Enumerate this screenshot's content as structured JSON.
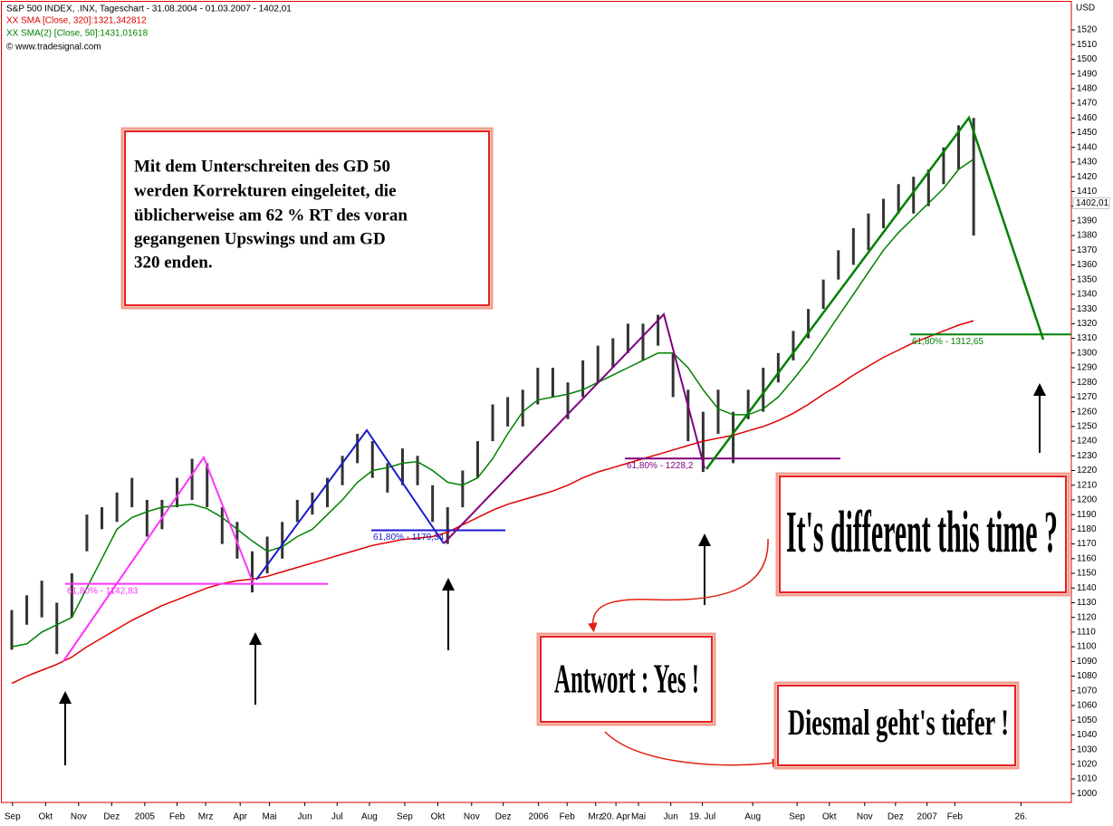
{
  "chart_data": {
    "type": "ohlc",
    "title": "S&P 500 INDEX, .INX, Tageschart - 31.08.2004 - 01.03.2007 - 1402,01",
    "credit": "© www.tradesignal.com",
    "y_axis_label": "USD",
    "color": "#333333",
    "x": [
      0,
      2,
      4,
      6,
      8,
      10,
      12,
      14,
      16,
      18,
      20,
      22,
      24,
      26,
      28,
      30,
      32,
      34,
      36,
      38,
      40,
      42,
      44,
      46,
      48,
      50,
      52,
      54,
      56,
      58,
      60,
      62,
      64,
      66,
      68,
      70,
      72,
      74,
      76,
      78,
      80,
      82,
      84,
      86,
      88,
      90,
      92,
      94,
      96,
      98,
      100,
      102,
      104,
      106,
      108,
      110,
      112,
      114,
      116,
      118,
      120,
      122,
      124,
      126,
      128
    ],
    "high": [
      1125,
      1135,
      1145,
      1130,
      1150,
      1190,
      1195,
      1205,
      1215,
      1200,
      1200,
      1215,
      1228,
      1225,
      1195,
      1185,
      1165,
      1175,
      1185,
      1200,
      1205,
      1215,
      1230,
      1245,
      1240,
      1225,
      1235,
      1230,
      1210,
      1195,
      1220,
      1240,
      1265,
      1270,
      1275,
      1290,
      1290,
      1280,
      1295,
      1305,
      1310,
      1320,
      1320,
      1326,
      1300,
      1275,
      1260,
      1275,
      1260,
      1275,
      1290,
      1300,
      1315,
      1330,
      1350,
      1370,
      1385,
      1395,
      1405,
      1415,
      1420,
      1425,
      1440,
      1455,
      1460
    ],
    "low": [
      1098,
      1115,
      1120,
      1095,
      1120,
      1165,
      1180,
      1185,
      1195,
      1175,
      1180,
      1195,
      1200,
      1195,
      1170,
      1160,
      1137,
      1150,
      1160,
      1185,
      1190,
      1195,
      1210,
      1225,
      1215,
      1205,
      1210,
      1210,
      1185,
      1170,
      1195,
      1215,
      1240,
      1250,
      1250,
      1265,
      1270,
      1255,
      1270,
      1280,
      1290,
      1300,
      1295,
      1305,
      1270,
      1240,
      1219,
      1245,
      1225,
      1255,
      1260,
      1280,
      1295,
      1310,
      1330,
      1350,
      1360,
      1370,
      1385,
      1395,
      1395,
      1400,
      1415,
      1425,
      1380
    ],
    "series": [
      {
        "name": "XX SMA [Close, 320]:1321,342812",
        "color": "#e00000",
        "values": [
          1075,
          1080,
          1084,
          1088,
          1093,
          1100,
          1106,
          1112,
          1118,
          1123,
          1128,
          1132,
          1136,
          1140,
          1143,
          1145,
          1146,
          1148,
          1151,
          1154,
          1157,
          1160,
          1163,
          1166,
          1169,
          1171,
          1173,
          1174,
          1175,
          1178,
          1183,
          1188,
          1193,
          1197,
          1200,
          1203,
          1206,
          1210,
          1215,
          1219,
          1222,
          1225,
          1228,
          1231,
          1234,
          1237,
          1240,
          1242,
          1244,
          1247,
          1250,
          1254,
          1259,
          1265,
          1272,
          1278,
          1285,
          1291,
          1297,
          1302,
          1307,
          1311,
          1315,
          1319,
          1322
        ]
      },
      {
        "name": "XX SMA(2) [Close, 50]:1431,01618",
        "color": "#008000",
        "values": [
          1100,
          1102,
          1110,
          1115,
          1120,
          1140,
          1160,
          1180,
          1188,
          1192,
          1195,
          1196,
          1197,
          1194,
          1188,
          1180,
          1172,
          1165,
          1168,
          1175,
          1180,
          1190,
          1200,
          1212,
          1220,
          1222,
          1225,
          1226,
          1220,
          1212,
          1210,
          1215,
          1228,
          1245,
          1260,
          1268,
          1270,
          1272,
          1275,
          1280,
          1285,
          1290,
          1295,
          1300,
          1300,
          1290,
          1275,
          1262,
          1258,
          1258,
          1262,
          1270,
          1282,
          1295,
          1310,
          1325,
          1340,
          1355,
          1370,
          1382,
          1392,
          1402,
          1412,
          1425,
          1432
        ]
      }
    ],
    "last_value": {
      "value": 1402.01,
      "label": "1402,01"
    },
    "fib_levels": [
      {
        "value": 1142.83,
        "label": "61,80% - 1142,83",
        "color": "#ff33ff"
      },
      {
        "value": 1179.34,
        "label": "61,80% - 1179,34",
        "color": "#1a1acc"
      },
      {
        "value": 1228.2,
        "label": "61,80% - 1228,2",
        "color": "#800080"
      },
      {
        "value": 1312.65,
        "label": "61,80% - 1312,65",
        "color": "#008000"
      }
    ],
    "xlim": [
      -1.2,
      141
    ],
    "ylim": [
      994,
      1538.5
    ],
    "xticks": [
      {
        "value": 0.1,
        "label": "Sep"
      },
      {
        "value": 4.5,
        "label": "Okt"
      },
      {
        "value": 8.9,
        "label": "Nov"
      },
      {
        "value": 13.3,
        "label": "Dez"
      },
      {
        "value": 17.7,
        "label": "2005"
      },
      {
        "value": 22.0,
        "label": "Feb"
      },
      {
        "value": 25.8,
        "label": "Mrz"
      },
      {
        "value": 30.4,
        "label": "Apr"
      },
      {
        "value": 34.3,
        "label": "Mai"
      },
      {
        "value": 39.0,
        "label": "Jun"
      },
      {
        "value": 43.3,
        "label": "Jul"
      },
      {
        "value": 47.6,
        "label": "Aug"
      },
      {
        "value": 52.3,
        "label": "Sep"
      },
      {
        "value": 56.7,
        "label": "Okt"
      },
      {
        "value": 61.2,
        "label": "Nov"
      },
      {
        "value": 65.4,
        "label": "Dez"
      },
      {
        "value": 70.1,
        "label": "2006"
      },
      {
        "value": 73.9,
        "label": "Feb"
      },
      {
        "value": 77.7,
        "label": "Mrz"
      },
      {
        "value": 80.4,
        "label": "20. Apr"
      },
      {
        "value": 83.4,
        "label": "Mai"
      },
      {
        "value": 87.7,
        "label": "Jun"
      },
      {
        "value": 91.9,
        "label": "19. Jul"
      },
      {
        "value": 98.6,
        "label": "Aug"
      },
      {
        "value": 104.5,
        "label": "Sep"
      },
      {
        "value": 108.8,
        "label": "Okt"
      },
      {
        "value": 113.5,
        "label": "Nov"
      },
      {
        "value": 117.6,
        "label": "Dez"
      },
      {
        "value": 121.8,
        "label": "2007"
      },
      {
        "value": 125.5,
        "label": "Feb"
      },
      {
        "value": 134.3,
        "label": "26."
      }
    ],
    "yticks": [
      1000,
      1010,
      1020,
      1030,
      1040,
      1050,
      1060,
      1070,
      1080,
      1090,
      1100,
      1110,
      1120,
      1130,
      1140,
      1150,
      1160,
      1170,
      1180,
      1190,
      1200,
      1210,
      1220,
      1230,
      1240,
      1250,
      1260,
      1270,
      1280,
      1290,
      1300,
      1310,
      1320,
      1330,
      1340,
      1350,
      1360,
      1370,
      1380,
      1390,
      1400,
      1410,
      1420,
      1430,
      1440,
      1450,
      1460,
      1470,
      1480,
      1490,
      1500,
      1510,
      1520
    ]
  },
  "annotations": {
    "text_box": [
      "Mit dem Unterschreiten des GD 50",
      "werden Korrekturen eingeleitet, die",
      "üblicherweise am 62 % RT des voran",
      "gegangenen Upswings und am GD",
      "320 enden."
    ],
    "callout": "It's different this time ?",
    "answer": "Antwort : Yes !",
    "outlook": "Diesmal geht's tiefer !"
  }
}
